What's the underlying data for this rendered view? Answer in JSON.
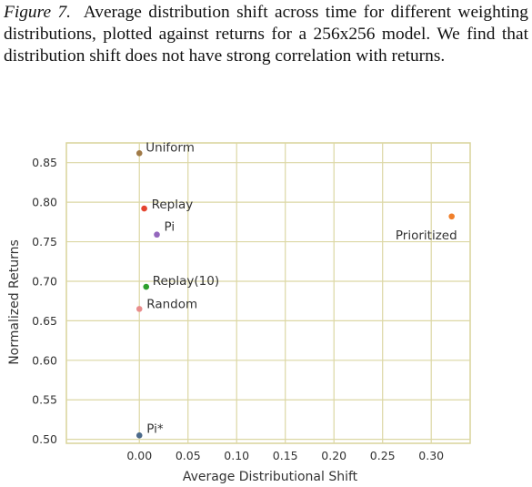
{
  "caption": {
    "figure_label": "Figure 7.",
    "text": "Average distribution shift across time for different weighting distributions, plotted against returns for a 256x256 model. We find that distribution shift does not have strong correlation with returns."
  },
  "chart_data": {
    "type": "scatter",
    "xlabel": "Average Distributional Shift",
    "ylabel": "Normalized Returns",
    "xlim": [
      -0.075,
      0.34
    ],
    "ylim": [
      0.495,
      0.875
    ],
    "xticks": [
      0.0,
      0.05,
      0.1,
      0.15,
      0.2,
      0.25,
      0.3
    ],
    "xtick_labels": [
      "0.00",
      "0.05",
      "0.10",
      "0.15",
      "0.20",
      "0.25",
      "0.30"
    ],
    "yticks": [
      0.5,
      0.55,
      0.6,
      0.65,
      0.7,
      0.75,
      0.8,
      0.85
    ],
    "ytick_labels": [
      "0.50",
      "0.55",
      "0.60",
      "0.65",
      "0.70",
      "0.75",
      "0.80",
      "0.85"
    ],
    "grid": true,
    "points": [
      {
        "label": "Uniform",
        "x": 0.0,
        "y": 0.862,
        "color": "#a07a47"
      },
      {
        "label": "Replay",
        "x": 0.005,
        "y": 0.792,
        "color": "#e5442f"
      },
      {
        "label": "Pi",
        "x": 0.018,
        "y": 0.759,
        "color": "#9467bd"
      },
      {
        "label": "Prioritized",
        "x": 0.321,
        "y": 0.782,
        "color": "#f07f2a"
      },
      {
        "label": "Replay(10)",
        "x": 0.007,
        "y": 0.693,
        "color": "#2ca02c"
      },
      {
        "label": "Random",
        "x": 0.0,
        "y": 0.665,
        "color": "#e88c8c"
      },
      {
        "label": "Pi*",
        "x": 0.0,
        "y": 0.505,
        "color": "#4c6a8a"
      }
    ]
  }
}
